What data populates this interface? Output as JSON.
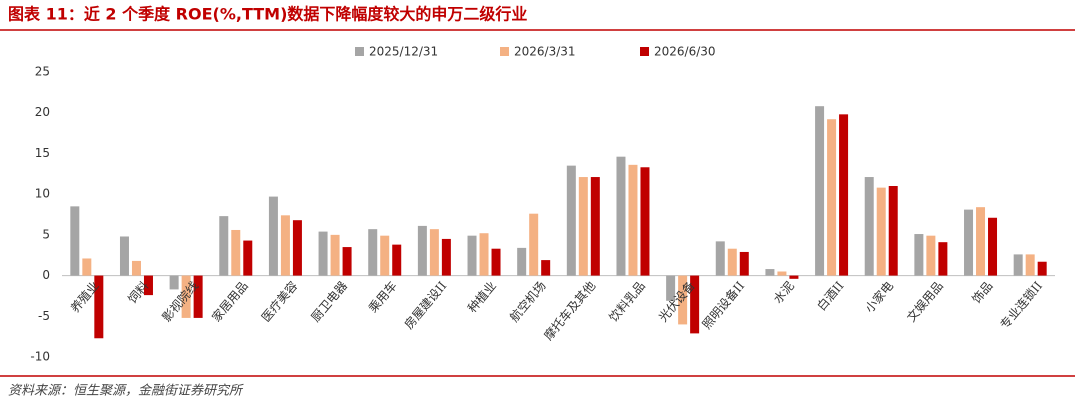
{
  "chart_data": {
    "type": "bar",
    "title": "图表 11：近 2 个季度 ROE(%,TTM)数据下降幅度较大的申万二级行业",
    "source": "资料来源：恒生聚源，金融街证券研究所",
    "categories": [
      "养殖业",
      "饲料",
      "影视院线",
      "家居用品",
      "医疗美容",
      "厨卫电器",
      "乘用车",
      "房屋建设II",
      "种植业",
      "航空机场",
      "摩托车及其他",
      "饮料乳品",
      "光伏设备",
      "照明设备II",
      "水泥",
      "白酒II",
      "小家电",
      "文娱用品",
      "饰品",
      "专业连锁II"
    ],
    "series": [
      {
        "name": "2025/12/31",
        "color": "#a5a5a5",
        "values": [
          8.5,
          4.8,
          -1.7,
          7.3,
          9.7,
          5.4,
          5.7,
          6.1,
          4.9,
          3.4,
          13.5,
          14.6,
          -3.1,
          4.2,
          0.8,
          20.8,
          12.1,
          5.1,
          8.1,
          2.6
        ]
      },
      {
        "name": "2026/3/31",
        "color": "#f4b183",
        "values": [
          2.1,
          1.8,
          -5.2,
          5.6,
          7.4,
          5.0,
          4.9,
          5.7,
          5.2,
          7.6,
          12.1,
          13.6,
          -6.0,
          3.3,
          0.5,
          19.2,
          10.8,
          4.9,
          8.4,
          2.6
        ]
      },
      {
        "name": "2026/6/30",
        "color": "#c00000",
        "values": [
          -7.7,
          -2.4,
          -5.2,
          4.3,
          6.8,
          3.5,
          3.8,
          4.5,
          3.3,
          1.9,
          12.1,
          13.3,
          -7.1,
          2.9,
          -0.4,
          19.8,
          11.0,
          4.1,
          7.1,
          1.7
        ]
      }
    ],
    "ylim": [
      -10,
      25
    ],
    "yticks": [
      -10,
      -5,
      0,
      5,
      10,
      15,
      20,
      25
    ],
    "grid": false
  }
}
